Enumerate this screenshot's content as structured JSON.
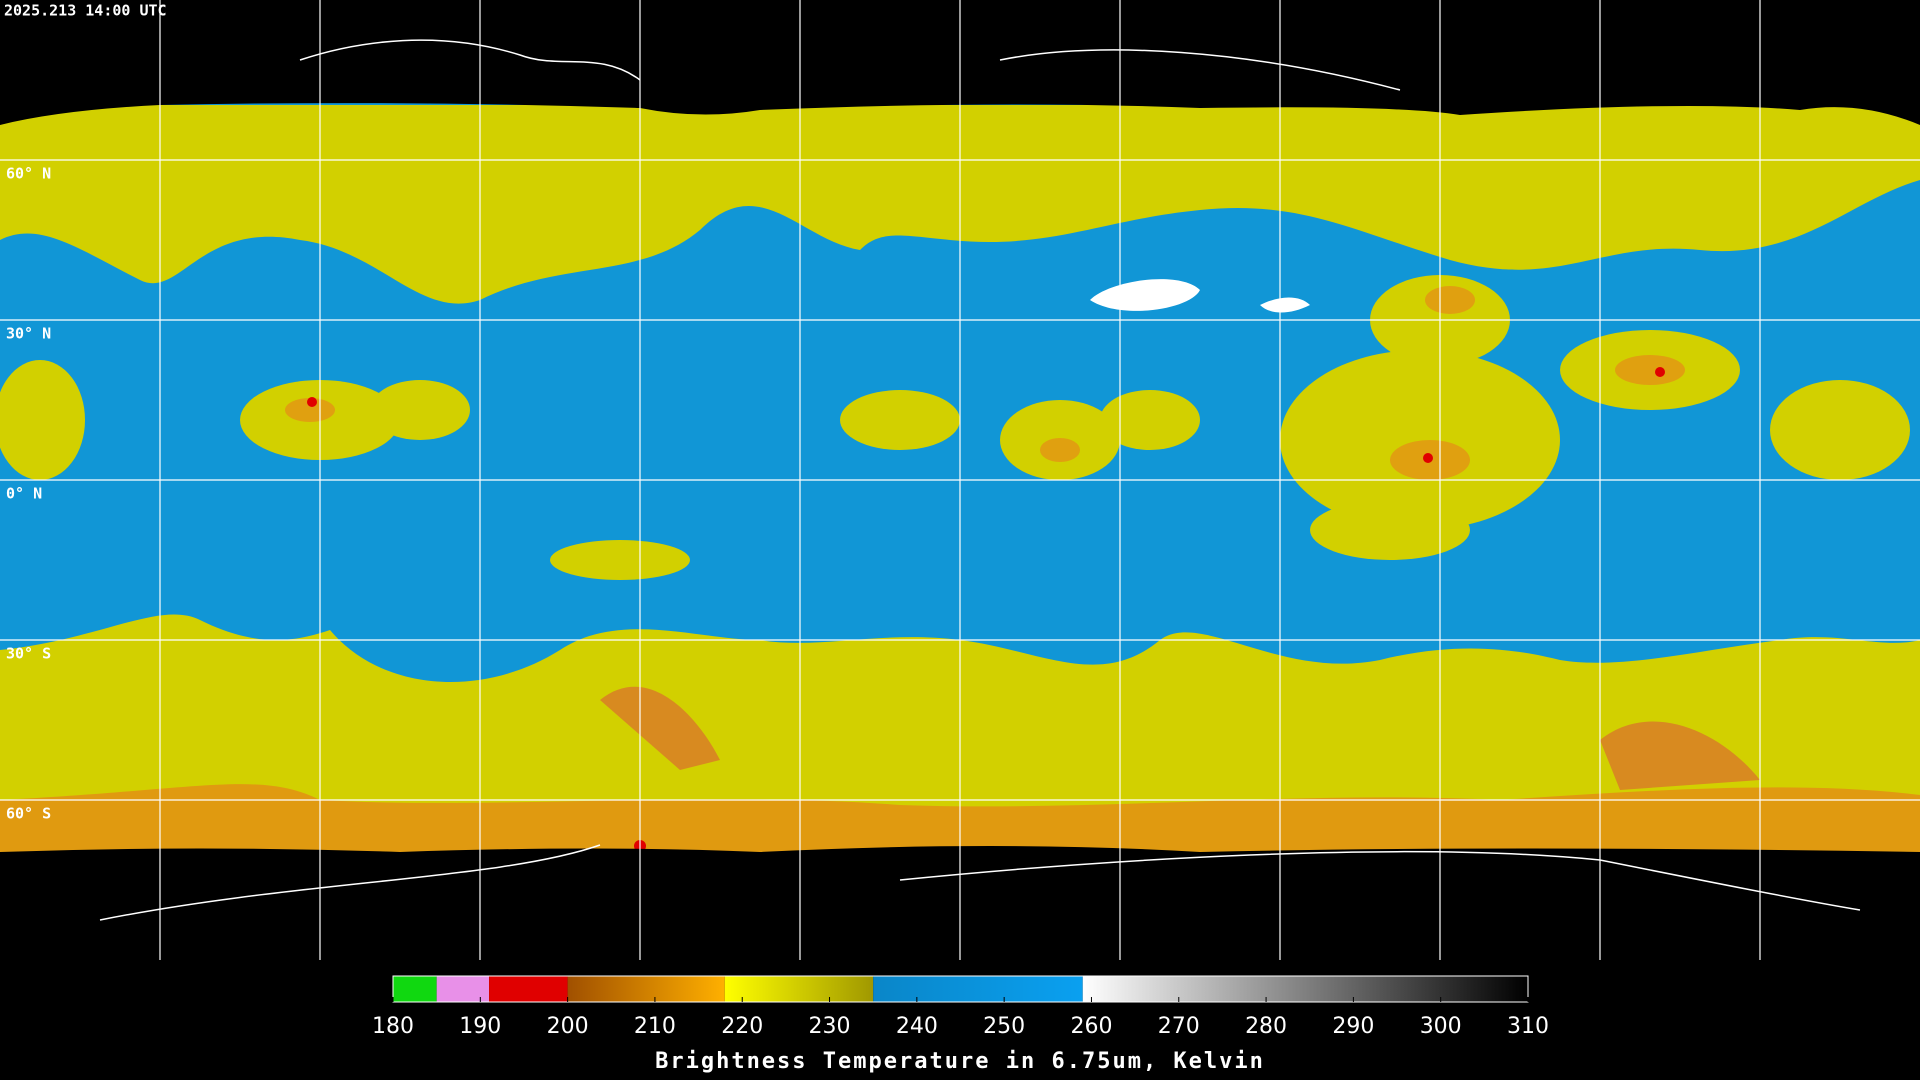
{
  "header": {
    "timestamp": "2025.213 14:00 UTC"
  },
  "map": {
    "lat_labels": [
      "60° N",
      "30° N",
      "0° N",
      "30° S",
      "60° S"
    ]
  },
  "colorbar": {
    "label": "Brightness Temperature in 6.75um, Kelvin",
    "range": [
      180,
      310
    ],
    "ticks": [
      180,
      190,
      200,
      210,
      220,
      230,
      240,
      250,
      260,
      270,
      280,
      290,
      300,
      310
    ],
    "segments": [
      {
        "from": 180,
        "to": 185,
        "colors": [
          "#10d810",
          "#10d810"
        ]
      },
      {
        "from": 185,
        "to": 191,
        "colors": [
          "#e890e8",
          "#e890e8"
        ]
      },
      {
        "from": 191,
        "to": 200,
        "colors": [
          "#e00000",
          "#e00000"
        ]
      },
      {
        "from": 200,
        "to": 218,
        "colors": [
          "#a05000",
          "#ffb000"
        ]
      },
      {
        "from": 218,
        "to": 235,
        "colors": [
          "#ffff00",
          "#a09800"
        ]
      },
      {
        "from": 235,
        "to": 259,
        "colors": [
          "#0a86c8",
          "#0aa0f0"
        ]
      },
      {
        "from": 259,
        "to": 310,
        "colors": [
          "#ffffff",
          "#000000"
        ]
      }
    ]
  }
}
